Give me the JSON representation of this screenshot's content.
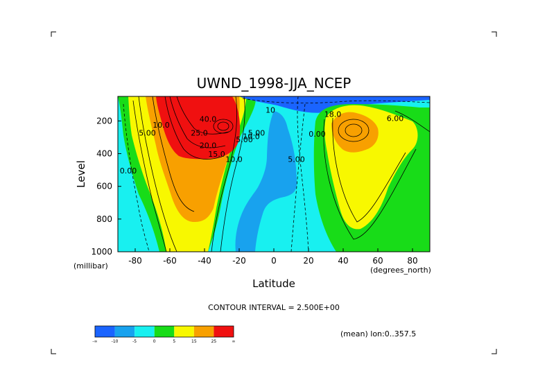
{
  "chart_data": {
    "type": "contour",
    "title": "UWND_1998-JJA_NCEP",
    "xlabel": "Latitude",
    "ylabel": "Level",
    "x_unit": "(degrees_north)",
    "y_unit": "(millibar)",
    "xlim": [
      -90,
      90
    ],
    "ylim": [
      1000,
      50
    ],
    "x_ticks": [
      -80,
      -60,
      -40,
      -20,
      0,
      20,
      40,
      60,
      80
    ],
    "y_ticks": [
      200,
      400,
      600,
      800,
      1000
    ],
    "contour_interval_text": "CONTOUR INTERVAL = 2.500E+00",
    "footnote": "(mean) lon:0..357.5",
    "colorbar": {
      "colors": [
        "#1a64ff",
        "#18a2ee",
        "#18f0f0",
        "#18dc18",
        "#f8f800",
        "#f8a000",
        "#f01010"
      ],
      "tick_labels": [
        "-∞",
        "-10",
        "-5",
        "0",
        "5",
        "15",
        "25",
        "∞"
      ]
    },
    "contour_labels": [
      {
        "text": "40.0",
        "lat": -38,
        "p": 205
      },
      {
        "text": "25.0",
        "lat": -43,
        "p": 290
      },
      {
        "text": "20.0",
        "lat": -38,
        "p": 365
      },
      {
        "text": "15.0",
        "lat": -33,
        "p": 420
      },
      {
        "text": "10.0",
        "lat": -23,
        "p": 450
      },
      {
        "text": "10.0",
        "lat": -65,
        "p": 240
      },
      {
        "text": "5.00",
        "lat": -73,
        "p": 290
      },
      {
        "text": "0.00",
        "lat": -84,
        "p": 520
      },
      {
        "text": "5.00",
        "lat": -17,
        "p": 330
      },
      {
        "text": "10.0",
        "lat": -13,
        "p": 310
      },
      {
        "text": "5.00",
        "lat": -10,
        "p": 290
      },
      {
        "text": "10",
        "lat": -2,
        "p": 150
      },
      {
        "text": "5.00",
        "lat": 13,
        "p": 450
      },
      {
        "text": "0.00",
        "lat": 25,
        "p": 295
      },
      {
        "text": "18.0",
        "lat": 34,
        "p": 175
      },
      {
        "text": "6.00",
        "lat": 70,
        "p": 200
      }
    ]
  }
}
